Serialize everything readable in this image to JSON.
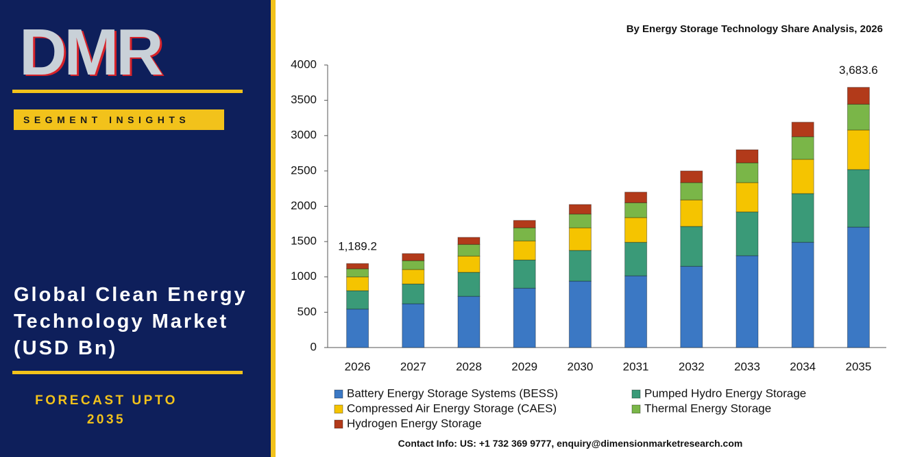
{
  "panel": {
    "logo": "DMR",
    "badge": "SEGMENT INSIGHTS",
    "title": "Global Clean Energy Technology Market (USD Bn)",
    "forecast": "FORECAST UPTO 2035"
  },
  "contact": "Contact Info: US: +1 732 369 9777, enquiry@dimensionmarketresearch.com",
  "chart_data": {
    "type": "stacked_bar",
    "title": "By Energy Storage Technology Share Analysis, 2026",
    "categories": [
      "2026",
      "2027",
      "2028",
      "2029",
      "2030",
      "2031",
      "2032",
      "2033",
      "2034",
      "2035"
    ],
    "series": [
      {
        "name": "Battery Energy Storage Systems (BESS)",
        "color": "#3b78c4",
        "values": [
          545,
          620,
          725,
          840,
          940,
          1015,
          1150,
          1300,
          1490,
          1705
        ]
      },
      {
        "name": "Pumped Hydro Energy Storage",
        "color": "#3a9a78",
        "values": [
          260,
          280,
          340,
          400,
          435,
          475,
          565,
          620,
          690,
          815
        ]
      },
      {
        "name": "Compressed Air Energy Storage (CAES)",
        "color": "#f5c400",
        "values": [
          195,
          205,
          230,
          270,
          320,
          350,
          375,
          415,
          485,
          560
        ]
      },
      {
        "name": "Thermal Energy Storage",
        "color": "#7ab648",
        "values": [
          115,
          125,
          165,
          185,
          195,
          210,
          245,
          280,
          320,
          365
        ]
      },
      {
        "name": "Hydrogen Energy Storage",
        "color": "#b23a1a",
        "values": [
          74.2,
          100,
          100,
          105,
          135,
          150,
          165,
          185,
          205,
          238.6
        ]
      }
    ],
    "annotations": [
      {
        "category": "2026",
        "value": 1189.2,
        "label": "1,189.2"
      },
      {
        "category": "2035",
        "value": 3683.6,
        "label": "3,683.6"
      }
    ],
    "ylim": [
      0,
      4000
    ],
    "yticks": [
      0,
      500,
      1000,
      1500,
      2000,
      2500,
      3000,
      3500,
      4000
    ],
    "grid": false
  }
}
